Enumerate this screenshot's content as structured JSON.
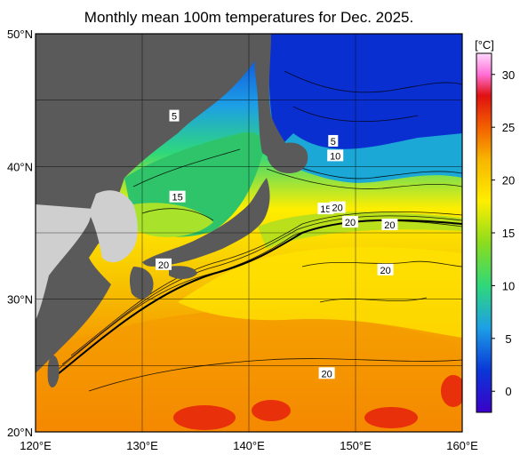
{
  "title": "Monthly mean 100m temperatures for Dec. 2025.",
  "lat_ticks": [
    "50°N",
    "40°N",
    "30°N",
    "20°N"
  ],
  "lon_ticks": [
    "120°E",
    "130°E",
    "140°E",
    "150°E",
    "160°E"
  ],
  "colorbar": {
    "unit": "[°C]",
    "labels": [
      "30",
      "25",
      "20",
      "15",
      "10",
      "5",
      "0"
    ],
    "stops": [
      {
        "v": -2,
        "c": "#3b00c8"
      },
      {
        "v": 2,
        "c": "#0a37d8"
      },
      {
        "v": 6,
        "c": "#1d9fe6"
      },
      {
        "v": 10,
        "c": "#2fd87a"
      },
      {
        "v": 14,
        "c": "#8adc1e"
      },
      {
        "v": 18,
        "c": "#ffee00"
      },
      {
        "v": 22,
        "c": "#f7b400"
      },
      {
        "v": 25,
        "c": "#f36000"
      },
      {
        "v": 28,
        "c": "#e01010"
      },
      {
        "v": 30,
        "c": "#ff6fd6"
      },
      {
        "v": 32,
        "c": "#ffd8ff"
      }
    ]
  },
  "contour_labels": [
    {
      "text": "5",
      "lon": 133.0,
      "lat": 43.8
    },
    {
      "text": "15",
      "lon": 133.3,
      "lat": 37.7
    },
    {
      "text": "20",
      "lon": 132.0,
      "lat": 32.6
    },
    {
      "text": "5",
      "lon": 147.9,
      "lat": 41.9
    },
    {
      "text": "10",
      "lon": 148.1,
      "lat": 40.8
    },
    {
      "text": "15",
      "lon": 147.2,
      "lat": 36.8
    },
    {
      "text": "20",
      "lon": 148.3,
      "lat": 36.9
    },
    {
      "text": "20",
      "lon": 149.5,
      "lat": 35.8
    },
    {
      "text": "20",
      "lon": 153.2,
      "lat": 35.6
    },
    {
      "text": "20",
      "lon": 152.8,
      "lat": 32.2
    },
    {
      "text": "20",
      "lon": 147.3,
      "lat": 24.4
    }
  ]
}
